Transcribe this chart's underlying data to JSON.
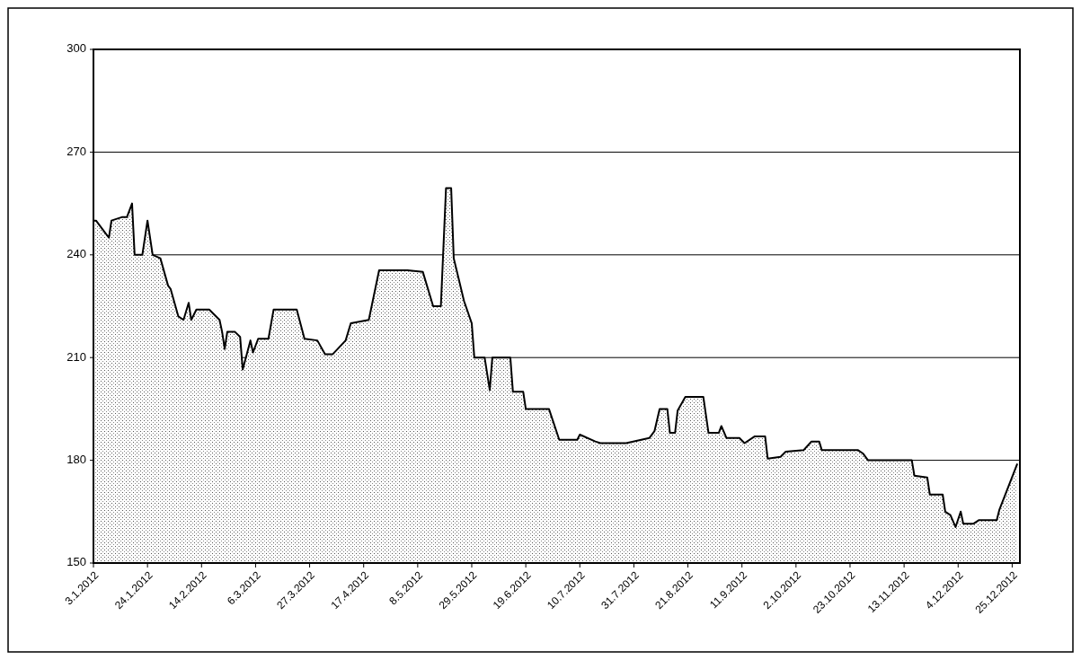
{
  "chart_data": {
    "type": "area",
    "xlim": [
      "2012-01-03",
      "2012-12-28"
    ],
    "ylim": [
      150,
      300
    ],
    "yticks": [
      150,
      180,
      210,
      240,
      270,
      300
    ],
    "xticks": [
      {
        "value": "2012-01-03",
        "label": "3.1.2012"
      },
      {
        "value": "2012-01-24",
        "label": "24.1.2012"
      },
      {
        "value": "2012-02-14",
        "label": "14.2.2012"
      },
      {
        "value": "2012-03-06",
        "label": "6.3.2012"
      },
      {
        "value": "2012-03-27",
        "label": "27.3.2012"
      },
      {
        "value": "2012-04-17",
        "label": "17.4.2012"
      },
      {
        "value": "2012-05-08",
        "label": "8.5.2012"
      },
      {
        "value": "2012-05-29",
        "label": "29.5.2012"
      },
      {
        "value": "2012-06-19",
        "label": "19.6.2012"
      },
      {
        "value": "2012-07-10",
        "label": "10.7.2012"
      },
      {
        "value": "2012-07-31",
        "label": "31.7.2012"
      },
      {
        "value": "2012-08-21",
        "label": "21.8.2012"
      },
      {
        "value": "2012-09-11",
        "label": "11.9.2012"
      },
      {
        "value": "2012-10-02",
        "label": "2.10.2012"
      },
      {
        "value": "2012-10-23",
        "label": "23.10.2012"
      },
      {
        "value": "2012-11-13",
        "label": "13.11.2012"
      },
      {
        "value": "2012-12-04",
        "label": "4.12.2012"
      },
      {
        "value": "2012-12-25",
        "label": "25.12.2012"
      }
    ],
    "grid": "y",
    "series": [
      {
        "color": "#000000",
        "x": [
          "2012-01-03",
          "2012-01-04",
          "2012-01-09",
          "2012-01-10",
          "2012-01-14",
          "2012-01-16",
          "2012-01-18",
          "2012-01-19",
          "2012-01-22",
          "2012-01-24",
          "2012-01-26",
          "2012-01-29",
          "2012-02-01",
          "2012-02-02",
          "2012-02-05",
          "2012-02-07",
          "2012-02-09",
          "2012-02-10",
          "2012-02-12",
          "2012-02-17",
          "2012-02-21",
          "2012-02-22",
          "2012-02-23",
          "2012-02-24",
          "2012-02-27",
          "2012-02-29",
          "2012-03-01",
          "2012-03-04",
          "2012-03-05",
          "2012-03-07",
          "2012-03-11",
          "2012-03-13",
          "2012-03-22",
          "2012-03-25",
          "2012-03-30",
          "2012-04-02",
          "2012-04-05",
          "2012-04-10",
          "2012-04-12",
          "2012-04-19",
          "2012-04-23",
          "2012-05-04",
          "2012-05-10",
          "2012-05-14",
          "2012-05-17",
          "2012-05-19",
          "2012-05-21",
          "2012-05-22",
          "2012-05-26",
          "2012-05-29",
          "2012-05-30",
          "2012-06-03",
          "2012-06-05",
          "2012-06-06",
          "2012-06-13",
          "2012-06-14",
          "2012-06-18",
          "2012-06-19",
          "2012-06-28",
          "2012-07-02",
          "2012-07-09",
          "2012-07-10",
          "2012-07-16",
          "2012-07-18",
          "2012-07-28",
          "2012-08-06",
          "2012-08-08",
          "2012-08-10",
          "2012-08-13",
          "2012-08-14",
          "2012-08-16",
          "2012-08-17",
          "2012-08-20",
          "2012-08-27",
          "2012-08-29",
          "2012-09-02",
          "2012-09-03",
          "2012-09-05",
          "2012-09-10",
          "2012-09-12",
          "2012-09-16",
          "2012-09-20",
          "2012-09-21",
          "2012-09-26",
          "2012-09-28",
          "2012-10-05",
          "2012-10-08",
          "2012-10-11",
          "2012-10-12",
          "2012-10-19",
          "2012-10-26",
          "2012-10-28",
          "2012-10-30",
          "2012-11-16",
          "2012-11-17",
          "2012-11-22",
          "2012-11-23",
          "2012-11-28",
          "2012-11-29",
          "2012-12-01",
          "2012-12-03",
          "2012-12-05",
          "2012-12-06",
          "2012-12-10",
          "2012-12-12",
          "2012-12-19",
          "2012-12-20",
          "2012-12-27"
        ],
        "values": [
          250,
          250,
          245,
          250,
          251,
          251,
          255,
          240,
          240,
          250,
          240,
          239,
          231,
          230,
          222,
          221,
          226,
          221,
          224,
          224,
          221,
          217.5,
          212.5,
          217.5,
          217.5,
          216,
          206.5,
          215,
          211.5,
          215.5,
          215.5,
          224,
          224,
          215.5,
          215,
          211,
          211,
          215,
          220,
          221,
          235.5,
          235.5,
          235,
          225,
          225,
          259.5,
          259.5,
          239,
          226.5,
          220,
          210,
          210,
          200.5,
          210,
          210,
          200,
          200,
          195,
          195,
          186,
          186,
          187.5,
          185.5,
          185,
          185,
          186.5,
          188.5,
          195,
          195,
          188,
          188,
          194.5,
          198.5,
          198.5,
          188,
          188,
          190,
          186.5,
          186.5,
          185,
          187,
          187,
          180.5,
          181,
          182.5,
          183,
          185.5,
          185.5,
          183,
          183,
          183,
          182,
          180,
          180,
          175.5,
          175,
          170,
          170,
          165,
          164,
          160.5,
          165,
          161.5,
          161.5,
          162.5,
          162.5,
          165.5,
          179
        ]
      }
    ]
  }
}
